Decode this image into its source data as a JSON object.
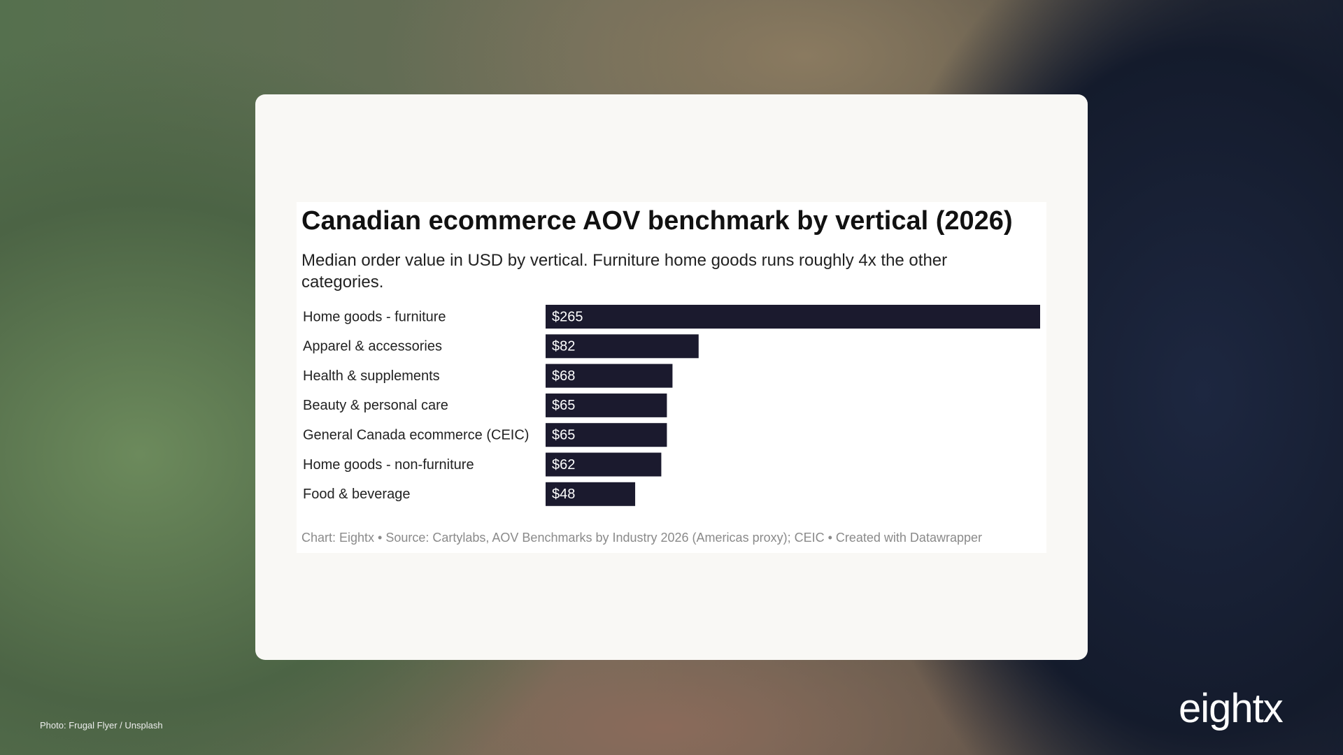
{
  "chart_data": {
    "type": "bar",
    "orientation": "horizontal",
    "title": "Canadian ecommerce AOV benchmark by vertical (2026)",
    "subtitle": "Median order value in USD by vertical. Furniture home goods runs roughly 4x the other categories.",
    "categories": [
      "Home goods - furniture",
      "Apparel & accessories",
      "Health & supplements",
      "Beauty & personal care",
      "General Canada ecommerce (CEIC)",
      "Home goods - non-furniture",
      "Food & beverage"
    ],
    "values": [
      265,
      82,
      68,
      65,
      65,
      62,
      48
    ],
    "value_labels": [
      "$265",
      "$82",
      "$68",
      "$65",
      "$65",
      "$62",
      "$48"
    ],
    "color": "#1b1a2e",
    "source": "Chart: Eightx • Source: Cartylabs, AOV Benchmarks by Industry 2026 (Americas proxy); CEIC • Created with Datawrapper"
  },
  "photo_credit": "Photo: Frugal Flyer / Unsplash",
  "brand": "eightx"
}
